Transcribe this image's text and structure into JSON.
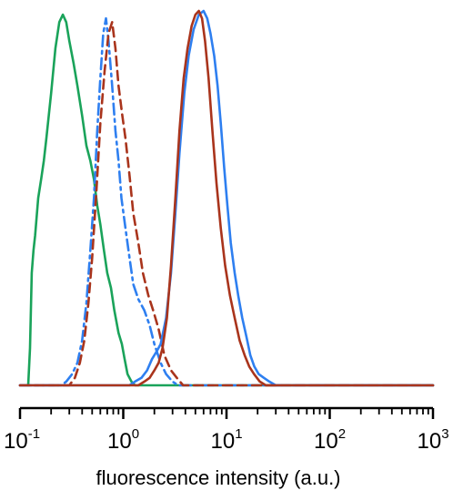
{
  "chart_data": {
    "type": "line",
    "title": "",
    "xlabel": "fluorescence intensity (a.u.)",
    "ylabel": "",
    "xscale": "log",
    "xlim": [
      0.1,
      1000
    ],
    "ylim": [
      0,
      1
    ],
    "grid": false,
    "legend": "none",
    "x_ticks": [
      {
        "base": "10",
        "exp": "-1",
        "value": 0.1
      },
      {
        "base": "10",
        "exp": "0",
        "value": 1
      },
      {
        "base": "10",
        "exp": "1",
        "value": 10
      },
      {
        "base": "10",
        "exp": "2",
        "value": 100
      },
      {
        "base": "10",
        "exp": "3",
        "value": 1000
      }
    ],
    "series": [
      {
        "color": "#1aa35a",
        "style": "solid",
        "points": [
          [
            0.12,
            0.0
          ],
          [
            0.125,
            0.1
          ],
          [
            0.13,
            0.3
          ],
          [
            0.135,
            0.36
          ],
          [
            0.14,
            0.4
          ],
          [
            0.15,
            0.5
          ],
          [
            0.16,
            0.55
          ],
          [
            0.17,
            0.6
          ],
          [
            0.18,
            0.66
          ],
          [
            0.2,
            0.78
          ],
          [
            0.22,
            0.9
          ],
          [
            0.24,
            0.97
          ],
          [
            0.26,
            0.99
          ],
          [
            0.28,
            0.97
          ],
          [
            0.3,
            0.92
          ],
          [
            0.33,
            0.86
          ],
          [
            0.36,
            0.8
          ],
          [
            0.4,
            0.72
          ],
          [
            0.44,
            0.64
          ],
          [
            0.48,
            0.6
          ],
          [
            0.52,
            0.55
          ],
          [
            0.56,
            0.48
          ],
          [
            0.6,
            0.43
          ],
          [
            0.65,
            0.36
          ],
          [
            0.7,
            0.3
          ],
          [
            0.76,
            0.26
          ],
          [
            0.82,
            0.2
          ],
          [
            0.9,
            0.14
          ],
          [
            0.97,
            0.11
          ],
          [
            1.03,
            0.07
          ],
          [
            1.1,
            0.03
          ],
          [
            1.2,
            0.01
          ],
          [
            1.3,
            0.0
          ],
          [
            1000,
            0.0
          ]
        ]
      },
      {
        "color": "#2e7ff0",
        "style": "dashdot",
        "points": [
          [
            0.1,
            0.0
          ],
          [
            0.25,
            0.0
          ],
          [
            0.28,
            0.01
          ],
          [
            0.32,
            0.03
          ],
          [
            0.36,
            0.06
          ],
          [
            0.4,
            0.12
          ],
          [
            0.44,
            0.22
          ],
          [
            0.48,
            0.36
          ],
          [
            0.52,
            0.5
          ],
          [
            0.56,
            0.68
          ],
          [
            0.6,
            0.82
          ],
          [
            0.64,
            0.94
          ],
          [
            0.68,
            0.98
          ],
          [
            0.72,
            0.92
          ],
          [
            0.78,
            0.8
          ],
          [
            0.84,
            0.68
          ],
          [
            0.9,
            0.6
          ],
          [
            0.96,
            0.5
          ],
          [
            1.05,
            0.42
          ],
          [
            1.15,
            0.34
          ],
          [
            1.25,
            0.27
          ],
          [
            1.4,
            0.23
          ],
          [
            1.6,
            0.2
          ],
          [
            1.8,
            0.16
          ],
          [
            2.0,
            0.11
          ],
          [
            2.3,
            0.06
          ],
          [
            2.6,
            0.03
          ],
          [
            3.0,
            0.01
          ],
          [
            3.4,
            0.0
          ],
          [
            1000,
            0.0
          ]
        ]
      },
      {
        "color": "#a9341c",
        "style": "dashed",
        "points": [
          [
            0.1,
            0.0
          ],
          [
            0.3,
            0.0
          ],
          [
            0.34,
            0.02
          ],
          [
            0.38,
            0.06
          ],
          [
            0.42,
            0.12
          ],
          [
            0.46,
            0.22
          ],
          [
            0.5,
            0.34
          ],
          [
            0.55,
            0.52
          ],
          [
            0.6,
            0.7
          ],
          [
            0.66,
            0.84
          ],
          [
            0.72,
            0.94
          ],
          [
            0.78,
            0.97
          ],
          [
            0.84,
            0.9
          ],
          [
            0.9,
            0.8
          ],
          [
            0.98,
            0.72
          ],
          [
            1.05,
            0.66
          ],
          [
            1.15,
            0.56
          ],
          [
            1.25,
            0.46
          ],
          [
            1.4,
            0.38
          ],
          [
            1.55,
            0.3
          ],
          [
            1.75,
            0.24
          ],
          [
            1.95,
            0.2
          ],
          [
            2.2,
            0.15
          ],
          [
            2.5,
            0.08
          ],
          [
            2.9,
            0.04
          ],
          [
            3.3,
            0.02
          ],
          [
            3.8,
            0.0
          ],
          [
            1000,
            0.0
          ]
        ]
      },
      {
        "color": "#2e7ff0",
        "style": "solid",
        "points": [
          [
            0.1,
            0.0
          ],
          [
            1.15,
            0.0
          ],
          [
            1.3,
            0.01
          ],
          [
            1.5,
            0.02
          ],
          [
            1.7,
            0.04
          ],
          [
            1.9,
            0.07
          ],
          [
            2.1,
            0.09
          ],
          [
            2.3,
            0.11
          ],
          [
            2.6,
            0.18
          ],
          [
            2.9,
            0.3
          ],
          [
            3.2,
            0.46
          ],
          [
            3.5,
            0.62
          ],
          [
            3.9,
            0.78
          ],
          [
            4.3,
            0.88
          ],
          [
            4.8,
            0.95
          ],
          [
            5.4,
            0.99
          ],
          [
            6.0,
            1.0
          ],
          [
            6.5,
            0.98
          ],
          [
            7.0,
            0.94
          ],
          [
            7.6,
            0.88
          ],
          [
            8.2,
            0.8
          ],
          [
            8.8,
            0.7
          ],
          [
            9.5,
            0.58
          ],
          [
            10.2,
            0.48
          ],
          [
            11.0,
            0.38
          ],
          [
            12.0,
            0.3
          ],
          [
            13.0,
            0.24
          ],
          [
            14.2,
            0.18
          ],
          [
            15.6,
            0.13
          ],
          [
            17.0,
            0.08
          ],
          [
            18.6,
            0.05
          ],
          [
            20.5,
            0.03
          ],
          [
            23,
            0.02
          ],
          [
            26,
            0.01
          ],
          [
            30,
            0.0
          ],
          [
            1000,
            0.0
          ]
        ]
      },
      {
        "color": "#a9341c",
        "style": "solid",
        "points": [
          [
            0.1,
            0.0
          ],
          [
            1.4,
            0.0
          ],
          [
            1.6,
            0.01
          ],
          [
            1.8,
            0.02
          ],
          [
            2.0,
            0.04
          ],
          [
            2.2,
            0.06
          ],
          [
            2.4,
            0.1
          ],
          [
            2.65,
            0.18
          ],
          [
            2.9,
            0.32
          ],
          [
            3.2,
            0.5
          ],
          [
            3.5,
            0.68
          ],
          [
            3.85,
            0.82
          ],
          [
            4.2,
            0.9
          ],
          [
            4.6,
            0.96
          ],
          [
            5.0,
            0.99
          ],
          [
            5.4,
            1.0
          ],
          [
            5.8,
            0.98
          ],
          [
            6.2,
            0.92
          ],
          [
            6.7,
            0.82
          ],
          [
            7.3,
            0.68
          ],
          [
            8.0,
            0.54
          ],
          [
            8.8,
            0.42
          ],
          [
            9.7,
            0.32
          ],
          [
            10.8,
            0.24
          ],
          [
            12.0,
            0.18
          ],
          [
            13.4,
            0.12
          ],
          [
            15.0,
            0.08
          ],
          [
            16.6,
            0.05
          ],
          [
            18.5,
            0.03
          ],
          [
            21,
            0.01
          ],
          [
            24,
            0.0
          ],
          [
            1000,
            0.0
          ]
        ]
      }
    ]
  }
}
